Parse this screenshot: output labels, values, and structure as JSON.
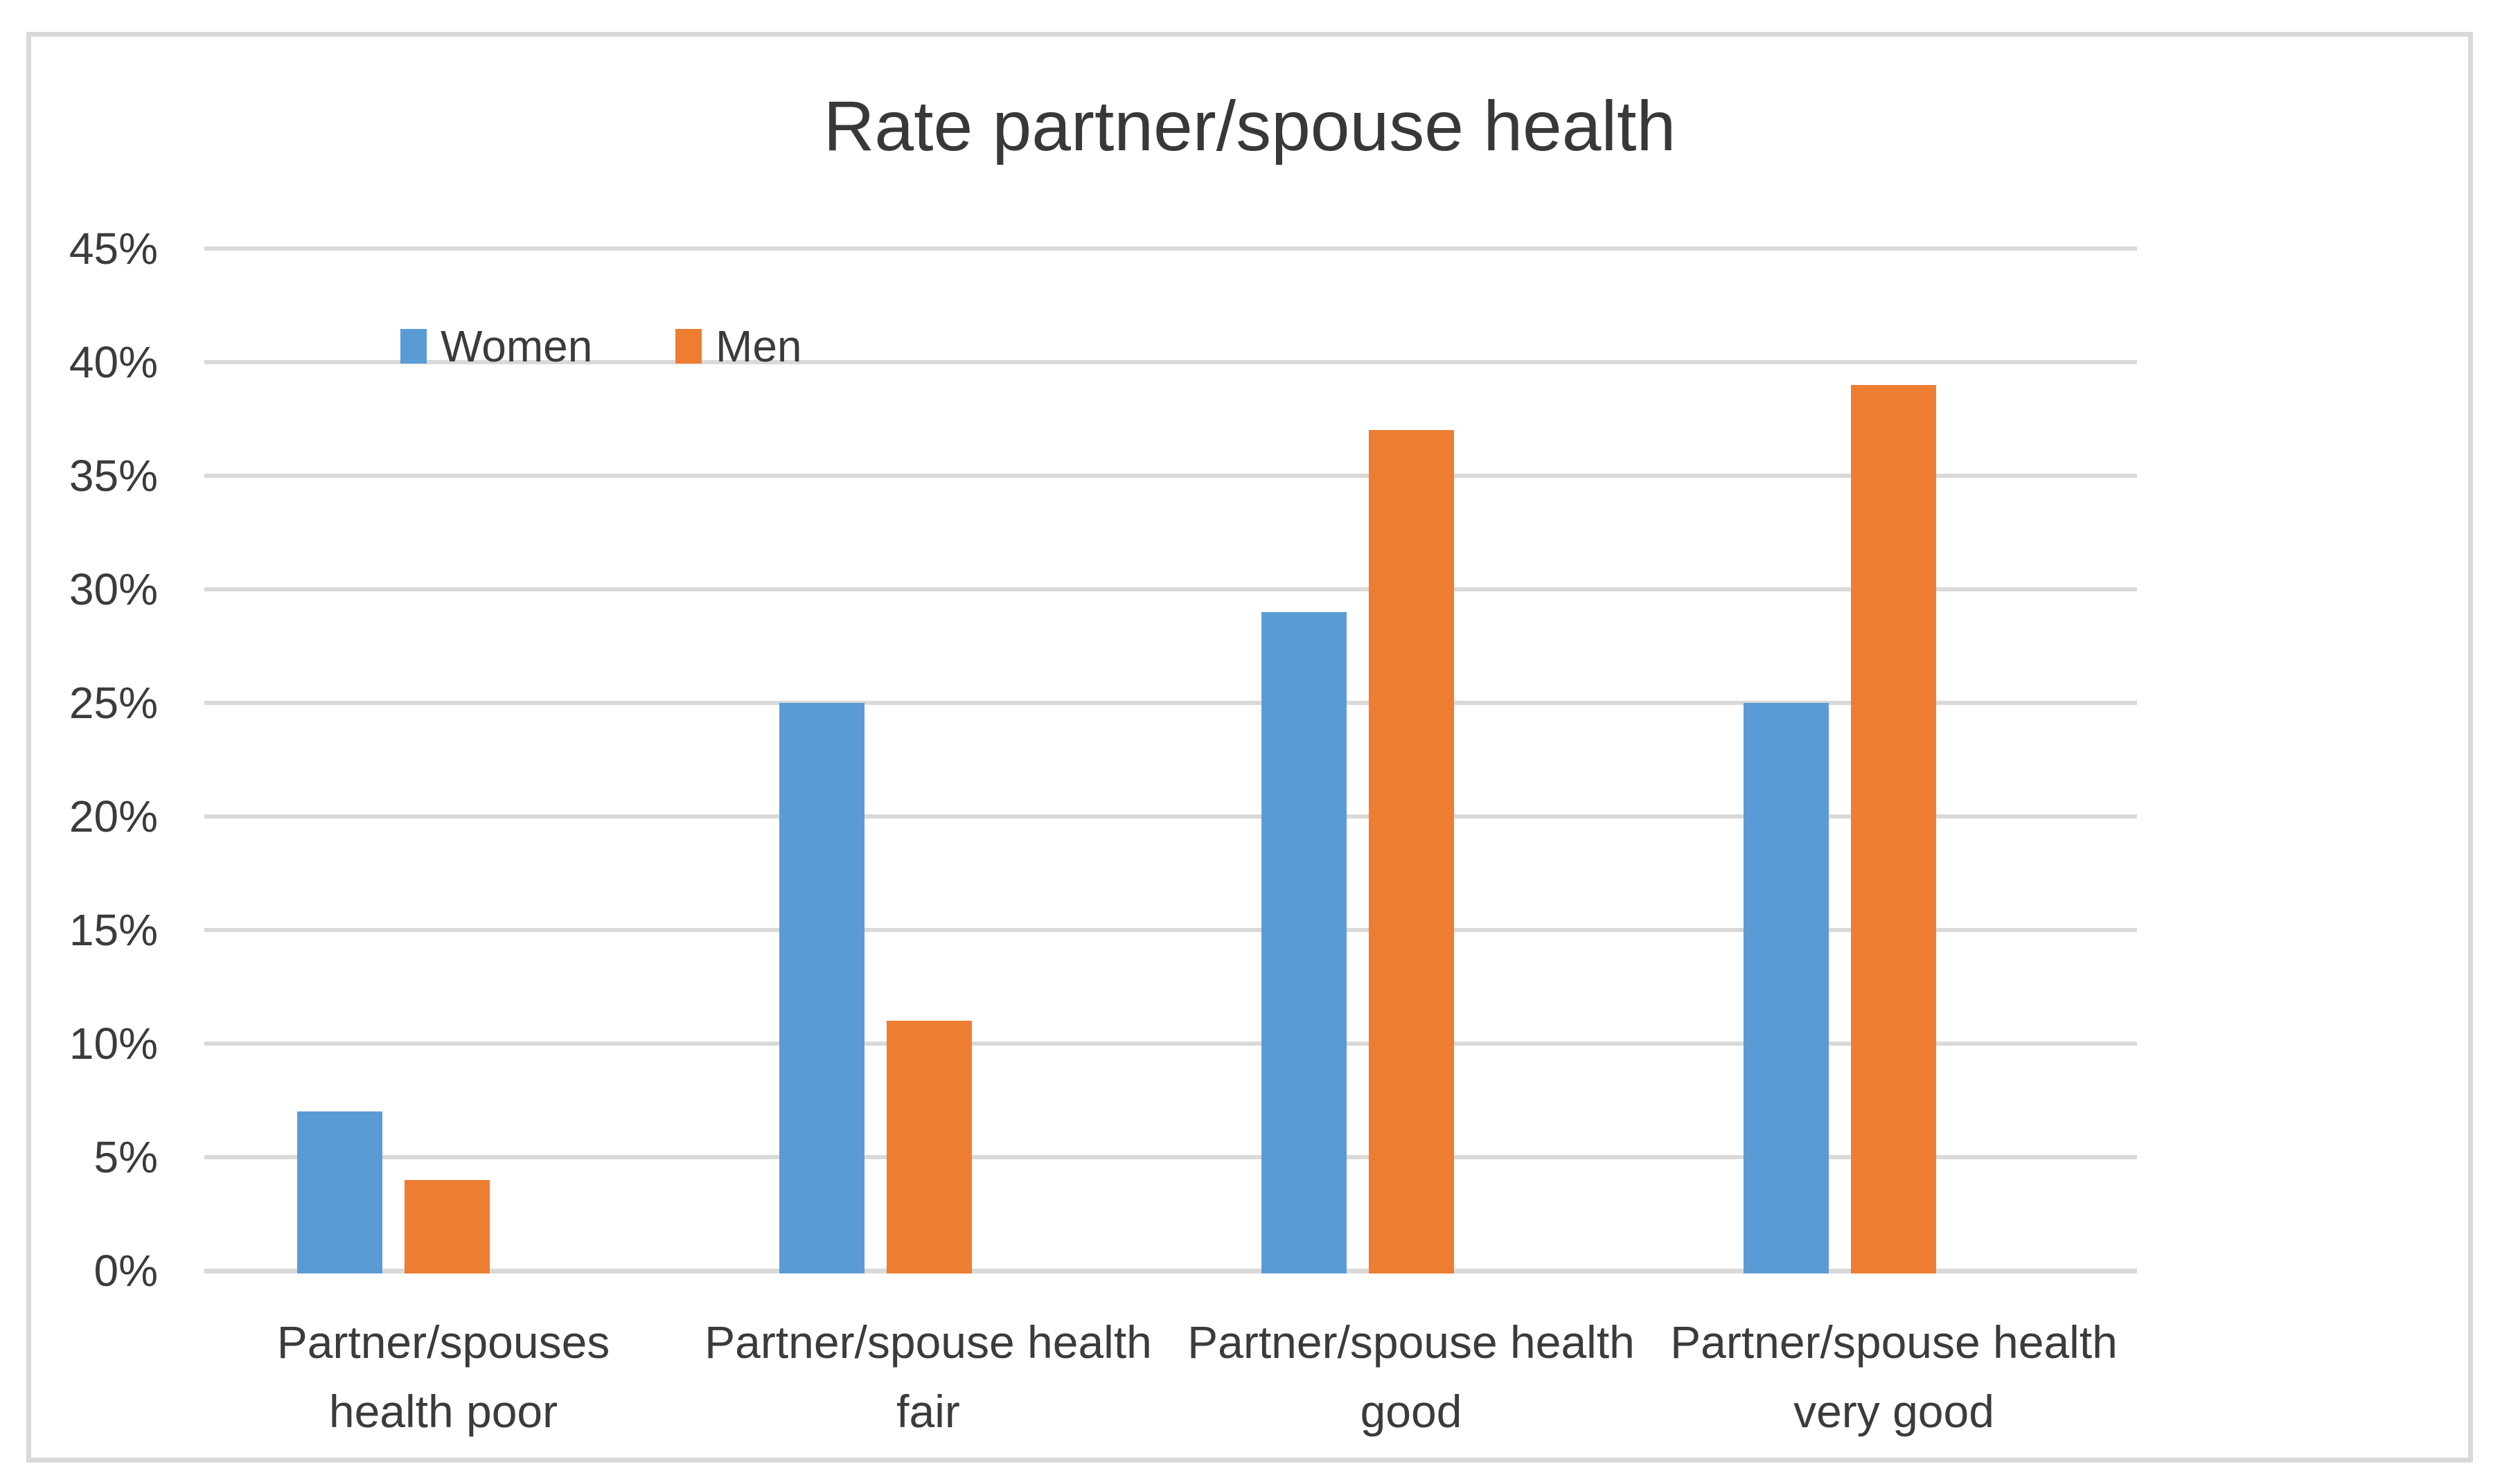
{
  "chart_data": {
    "type": "bar",
    "title": "Rate partner/spouse health",
    "categories": [
      "Partner/spouses health poor",
      "Partner/spouse health fair",
      "Partner/spouse health good",
      "Partner/spouse health very good"
    ],
    "category_label_lines": [
      [
        "Partner/spouses",
        "health poor"
      ],
      [
        "Partner/spouse health",
        "fair"
      ],
      [
        "Partner/spouse health",
        "good"
      ],
      [
        "Partner/spouse health",
        "very good"
      ]
    ],
    "series": [
      {
        "name": "Women",
        "color": "#5B9BD5",
        "values": [
          7,
          25,
          29,
          25
        ]
      },
      {
        "name": "Men",
        "color": "#ED7D31",
        "values": [
          4,
          11,
          37,
          39
        ]
      }
    ],
    "unit": "%",
    "ylim": [
      0,
      45
    ],
    "y_tick_step": 5,
    "y_tick_labels": [
      "0%",
      "5%",
      "10%",
      "15%",
      "20%",
      "25%",
      "30%",
      "35%",
      "40%",
      "45%"
    ],
    "grid": true,
    "legend_position": "inside-top-left"
  },
  "styles": {
    "grid_color": "#D9D9D9",
    "frame_color": "#D9D9D9",
    "text_color": "#3b3b3b",
    "title_color": "#383838",
    "background": "#FFFFFF"
  }
}
